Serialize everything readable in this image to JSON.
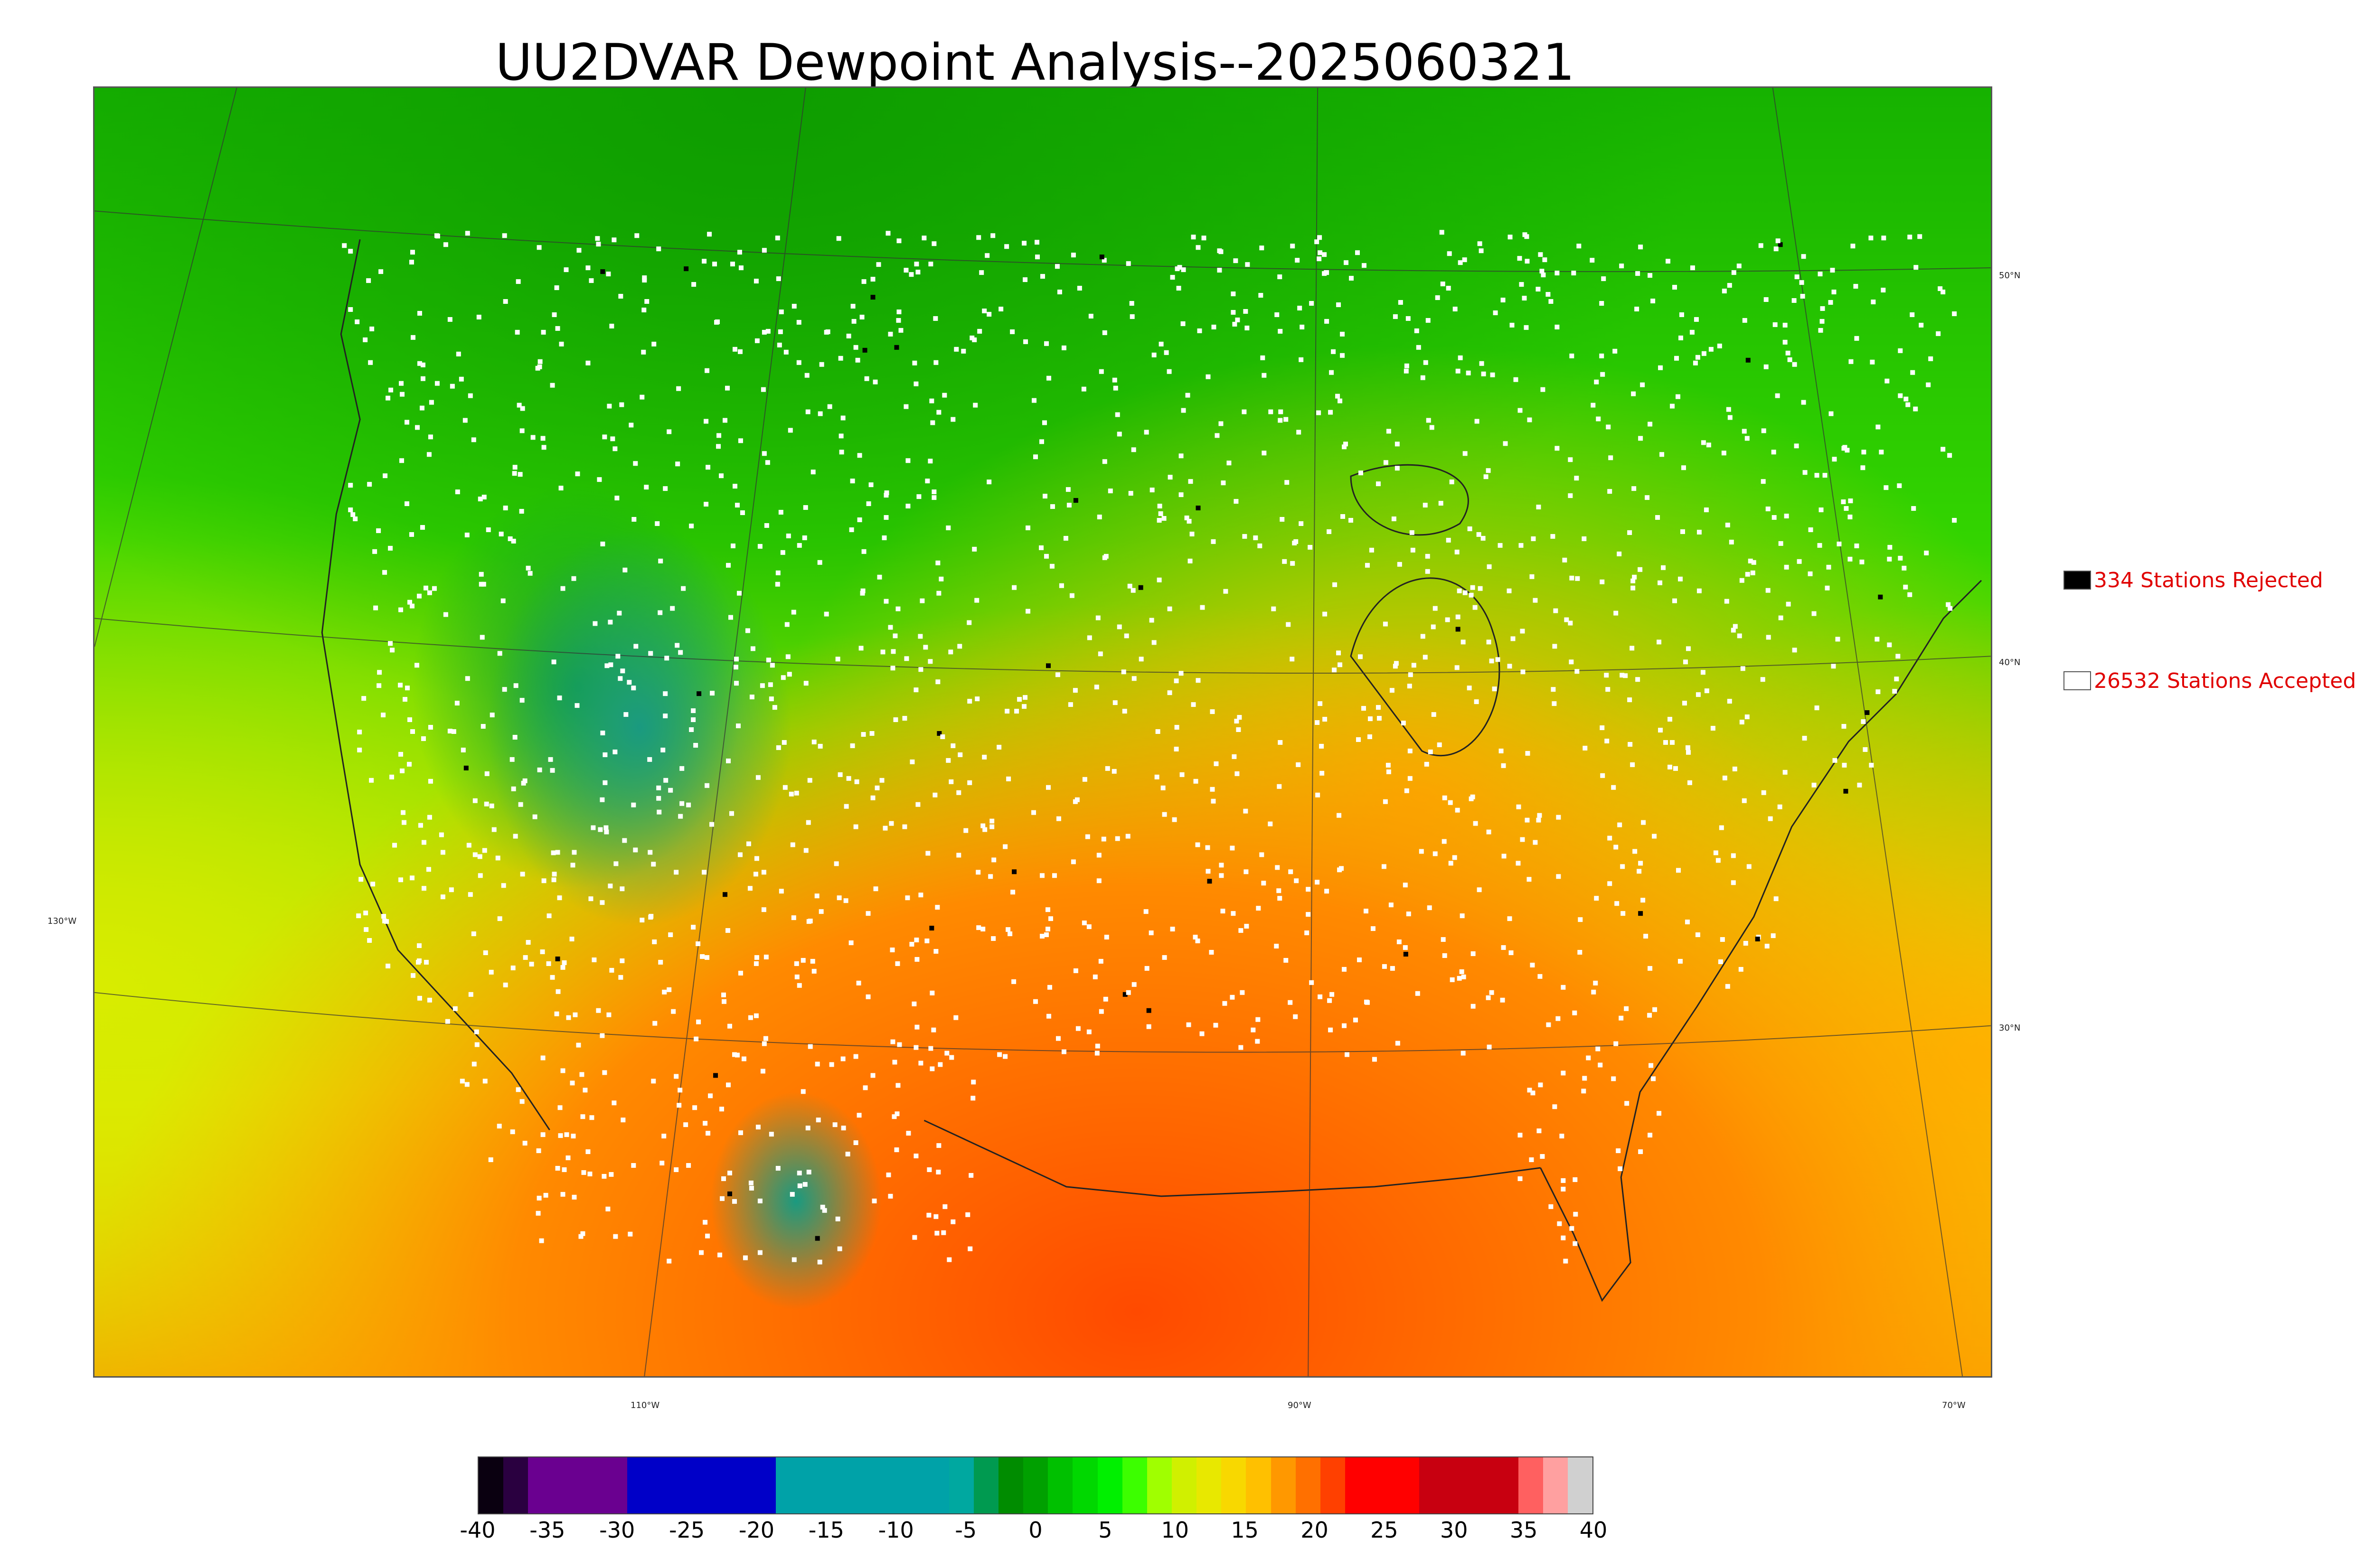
{
  "title": "UU2DVAR Dewpoint Analysis--2025060321",
  "map": {
    "lat_labels": [
      "50°N",
      "40°N",
      "30°N"
    ],
    "lon_labels": [
      "130°W",
      "110°W",
      "90°W",
      "70°W"
    ]
  },
  "legend": {
    "rejected": {
      "label": "334 Stations Rejected",
      "swatch_color": "#000000"
    },
    "accepted": {
      "label": "26532 Stations Accepted",
      "swatch_color": "#ffffff"
    },
    "text_color": "#e00000"
  },
  "colorbar": {
    "min": -40,
    "max": 40,
    "ticks": [
      "-40",
      "-35",
      "-30",
      "-25",
      "-20",
      "-15",
      "-10",
      "-5",
      "0",
      "5",
      "10",
      "15",
      "20",
      "25",
      "30",
      "35",
      "40"
    ],
    "colors": [
      "#0a0010",
      "#2a0040",
      "#6a0090",
      "#6a0090",
      "#6a0090",
      "#6a0090",
      "#0000c8",
      "#0000c8",
      "#0000c8",
      "#0000c8",
      "#0000c8",
      "#0000c8",
      "#00a2a8",
      "#00a2a8",
      "#00a2a8",
      "#00a2a8",
      "#00a2a8",
      "#00a2a8",
      "#00a2a8",
      "#00a8a0",
      "#009a50",
      "#008c00",
      "#00a000",
      "#00c000",
      "#00d800",
      "#00f000",
      "#3cff00",
      "#a0ff00",
      "#d0f000",
      "#e8e800",
      "#f8d800",
      "#ffc000",
      "#ff9800",
      "#ff7000",
      "#ff4000",
      "#ff0000",
      "#ff0000",
      "#ff0000",
      "#c80010",
      "#c80010",
      "#c80010",
      "#c80010",
      "#ff6060",
      "#ffa0a0",
      "#d0d0d0"
    ]
  }
}
